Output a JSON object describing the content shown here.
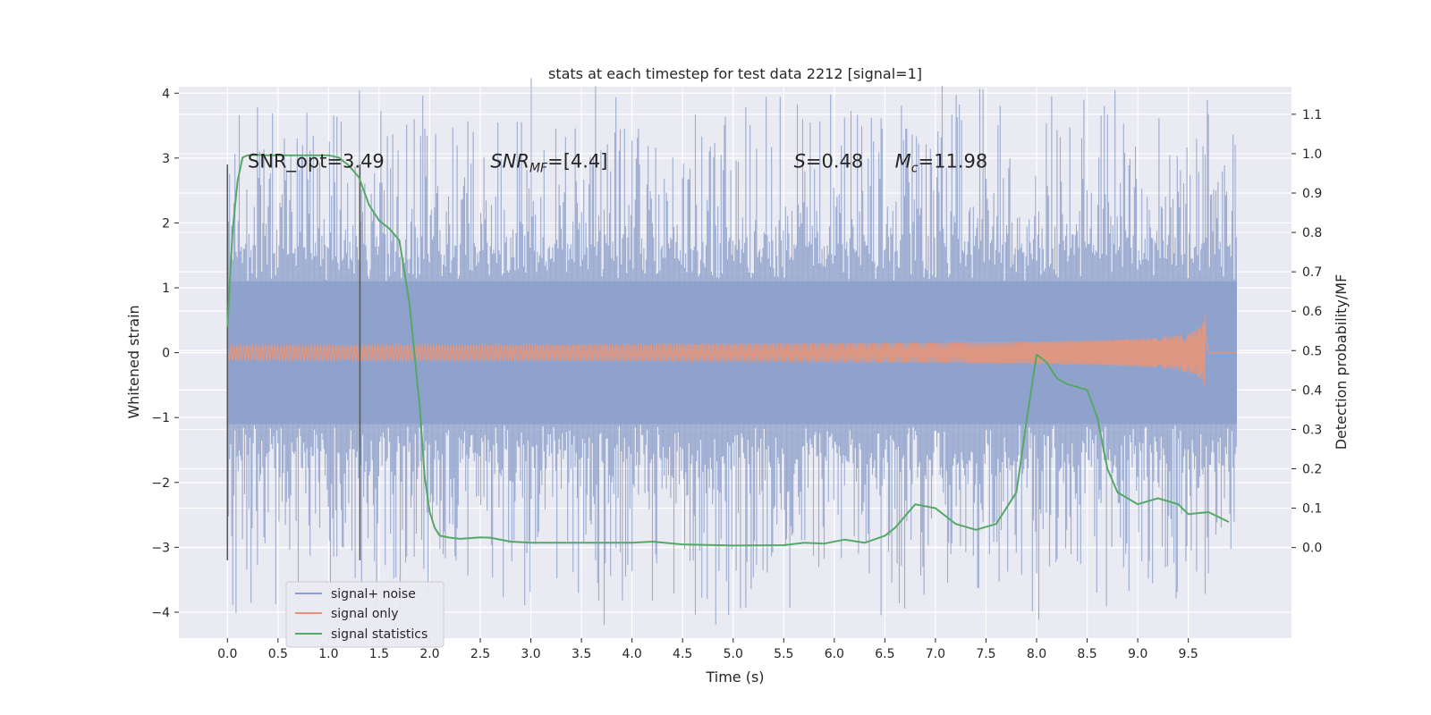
{
  "chart_data": {
    "type": "line",
    "title": "stats at each timestep for test data 2212 [signal=1]",
    "xlabel": "Time (s)",
    "ylabel": "Whitened strain",
    "y2label": "Detection probability/MF",
    "xlim": [
      -0.48,
      10.52
    ],
    "ylim": [
      -4.4,
      4.1
    ],
    "y2lim": [
      -0.23,
      1.17
    ],
    "x_ticks": [
      "0.0",
      "0.5",
      "1.0",
      "1.5",
      "2.0",
      "2.5",
      "3.0",
      "3.5",
      "4.0",
      "4.5",
      "5.0",
      "5.5",
      "6.0",
      "6.5",
      "7.0",
      "7.5",
      "8.0",
      "8.5",
      "9.0",
      "9.5"
    ],
    "y_ticks": [
      "4",
      "3",
      "2",
      "1",
      "0",
      "−1",
      "−2",
      "−3",
      "−4"
    ],
    "y2_ticks": [
      "1.1",
      "1.0",
      "0.9",
      "0.8",
      "0.7",
      "0.6",
      "0.5",
      "0.4",
      "0.3",
      "0.2",
      "0.1",
      "0.0"
    ],
    "grid": true,
    "legend_position": "bottom-left",
    "colors": {
      "noise": "#8da0cb",
      "signal": "#e5967a",
      "stats": "#55a868",
      "vline": "#555555",
      "background": "#eaeaf2"
    },
    "annotations": [
      {
        "x": 0.2,
        "y": 2.85,
        "text": "SNR_opt=3.49",
        "sub": ""
      },
      {
        "x": 2.6,
        "y": 2.85,
        "text": "SNR",
        "sub": "MF",
        "rest": "=[4.4]"
      },
      {
        "x": 5.6,
        "y": 2.85,
        "text": "S",
        "sub": "",
        "rest": "=0.48"
      },
      {
        "x": 6.6,
        "y": 2.85,
        "text": "M",
        "sub": "c",
        "rest": "=11.98"
      }
    ],
    "vlines": [
      {
        "x": 0.0,
        "y": [
          -3.2,
          2.9
        ]
      },
      {
        "x": 1.31,
        "y": [
          -3.2,
          2.9
        ]
      }
    ],
    "series": [
      {
        "name": "signal+ noise",
        "axis": "left",
        "x_range": [
          0.0,
          9.98
        ],
        "envelope": 1.1,
        "spike_max": 3.7
      },
      {
        "name": "signal only",
        "axis": "left",
        "x_range": [
          0.0,
          9.68
        ],
        "chirp_peak": 0.6
      },
      {
        "name": "signal statistics",
        "axis": "right",
        "x": [
          0.0,
          0.05,
          0.1,
          0.15,
          0.2,
          0.3,
          0.4,
          0.5,
          0.6,
          0.7,
          0.8,
          0.9,
          1.0,
          1.1,
          1.2,
          1.3,
          1.4,
          1.5,
          1.6,
          1.7,
          1.8,
          1.9,
          1.95,
          2.0,
          2.05,
          2.1,
          2.2,
          2.3,
          2.4,
          2.5,
          2.6,
          2.8,
          3.0,
          3.5,
          4.0,
          4.2,
          4.5,
          5.0,
          5.5,
          5.7,
          5.9,
          6.1,
          6.3,
          6.5,
          6.6,
          6.8,
          7.0,
          7.2,
          7.4,
          7.6,
          7.8,
          7.9,
          8.0,
          8.1,
          8.2,
          8.3,
          8.5,
          8.6,
          8.7,
          8.8,
          9.0,
          9.2,
          9.4,
          9.5,
          9.7,
          9.9
        ],
        "y": [
          0.56,
          0.8,
          0.93,
          0.99,
          0.996,
          0.997,
          0.996,
          0.996,
          0.996,
          0.996,
          0.996,
          0.996,
          0.996,
          0.99,
          0.97,
          0.94,
          0.87,
          0.83,
          0.81,
          0.78,
          0.62,
          0.36,
          0.18,
          0.09,
          0.05,
          0.03,
          0.025,
          0.022,
          0.024,
          0.026,
          0.025,
          0.015,
          0.012,
          0.012,
          0.012,
          0.015,
          0.008,
          0.005,
          0.006,
          0.012,
          0.01,
          0.02,
          0.012,
          0.03,
          0.05,
          0.11,
          0.1,
          0.06,
          0.045,
          0.06,
          0.14,
          0.32,
          0.49,
          0.47,
          0.43,
          0.415,
          0.4,
          0.33,
          0.2,
          0.14,
          0.11,
          0.125,
          0.11,
          0.085,
          0.09,
          0.065
        ]
      }
    ]
  }
}
